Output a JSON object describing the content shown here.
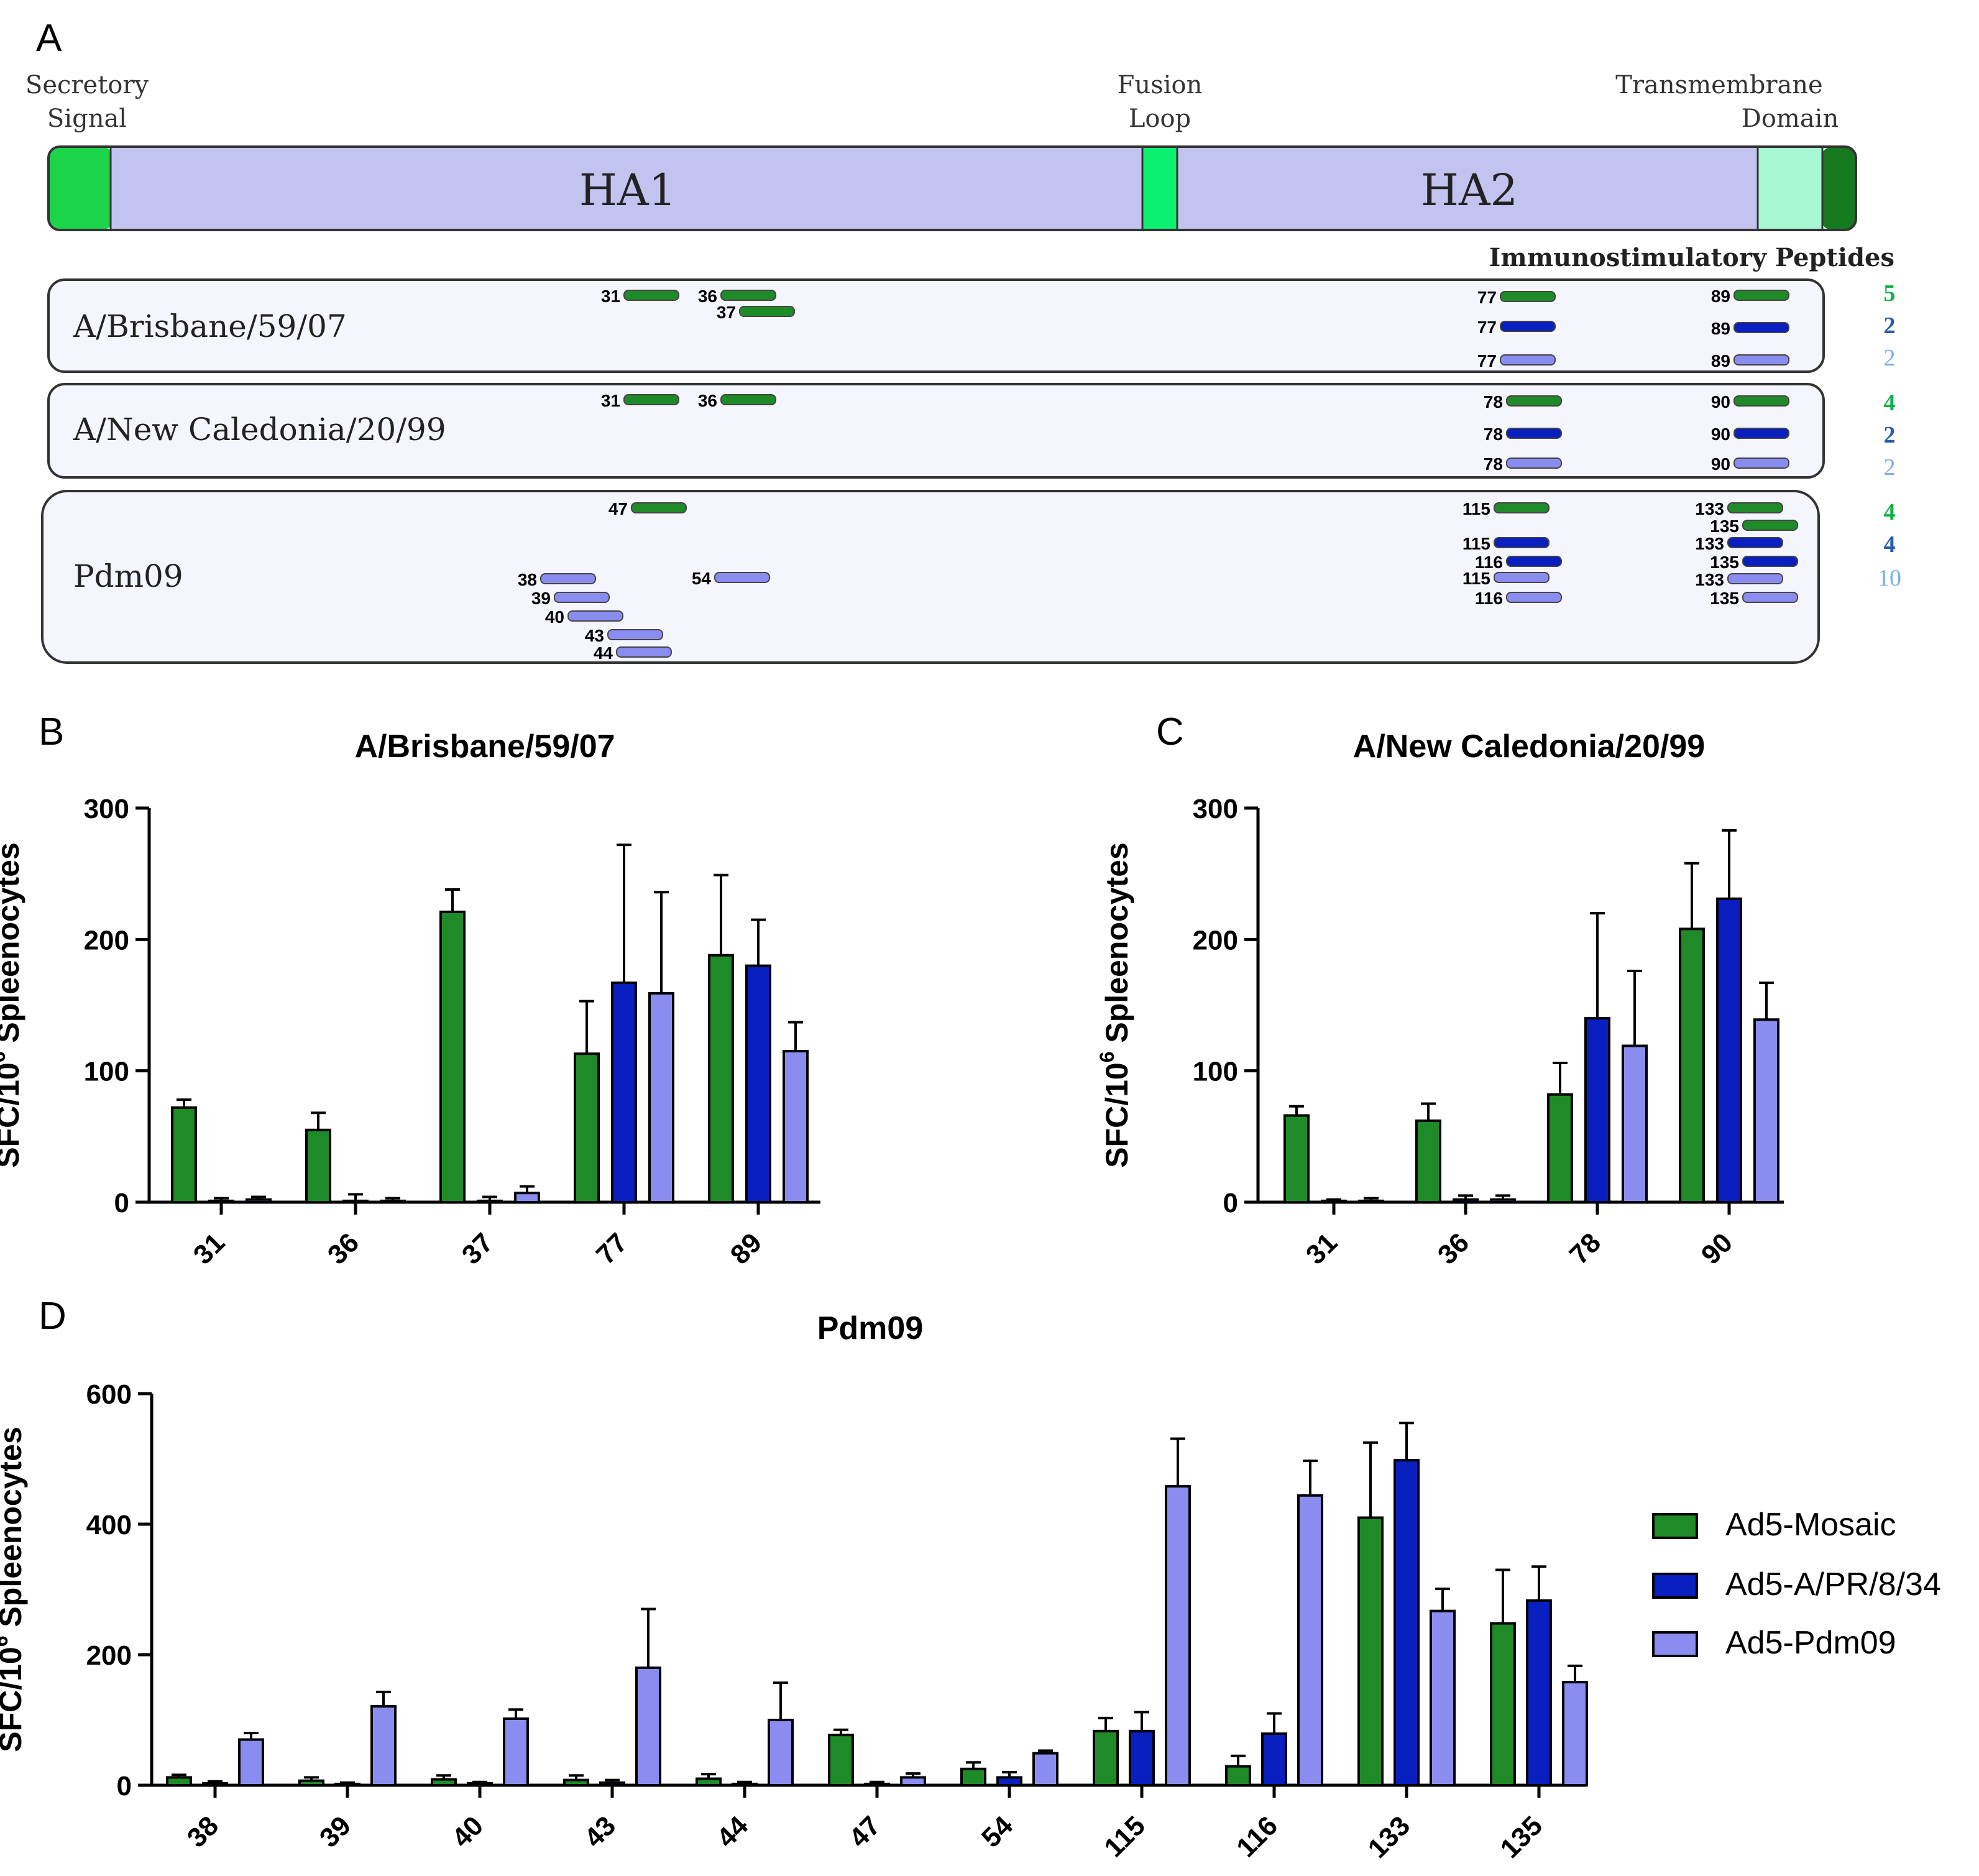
{
  "colors": {
    "mosaic": "#1e8a28",
    "pr8": "#0a1fbf",
    "pdm09": "#8b8cf0",
    "ha_body": "#c3c3f0",
    "secretory": "#1bd44a",
    "fusion": "#0bf070",
    "tm": "#a6f7d2",
    "cyto": "#157a1e",
    "strain_box": "#f5f5fe",
    "count_mosaic": "#13b04b",
    "count_pr8": "#2a5bb0",
    "count_pdm09": "#7aaee8"
  },
  "panel_a": {
    "label": "A",
    "secretory_label": [
      "Secretory",
      "Signal"
    ],
    "fusion_label": [
      "Fusion",
      "Loop"
    ],
    "tm_label": [
      "Transmembrane",
      "Domain"
    ],
    "ha1": "HA1",
    "ha2": "HA2",
    "peptides_title": "Immunostimulatory Peptides",
    "strains": [
      {
        "name": "A/Brisbane/59/07",
        "counts": [
          "5",
          "2",
          "2"
        ],
        "peptides": [
          {
            "id": "31",
            "group": "mosaic"
          },
          {
            "id": "36",
            "group": "mosaic"
          },
          {
            "id": "37",
            "group": "mosaic"
          },
          {
            "id": "77",
            "group": "mosaic"
          },
          {
            "id": "89",
            "group": "mosaic"
          },
          {
            "id": "77",
            "group": "pr8"
          },
          {
            "id": "89",
            "group": "pr8"
          },
          {
            "id": "77",
            "group": "pdm09"
          },
          {
            "id": "89",
            "group": "pdm09"
          }
        ]
      },
      {
        "name": "A/New Caledonia/20/99",
        "counts": [
          "4",
          "2",
          "2"
        ],
        "peptides": [
          {
            "id": "31",
            "group": "mosaic"
          },
          {
            "id": "36",
            "group": "mosaic"
          },
          {
            "id": "78",
            "group": "mosaic"
          },
          {
            "id": "90",
            "group": "mosaic"
          },
          {
            "id": "78",
            "group": "pr8"
          },
          {
            "id": "90",
            "group": "pr8"
          },
          {
            "id": "78",
            "group": "pdm09"
          },
          {
            "id": "90",
            "group": "pdm09"
          }
        ]
      },
      {
        "name": "Pdm09",
        "counts": [
          "4",
          "4",
          "10"
        ],
        "peptides": [
          {
            "id": "47",
            "group": "mosaic"
          },
          {
            "id": "115",
            "group": "mosaic"
          },
          {
            "id": "133",
            "group": "mosaic"
          },
          {
            "id": "135",
            "group": "mosaic"
          },
          {
            "id": "115",
            "group": "pr8"
          },
          {
            "id": "116",
            "group": "pr8"
          },
          {
            "id": "133",
            "group": "pr8"
          },
          {
            "id": "135",
            "group": "pr8"
          },
          {
            "id": "38",
            "group": "pdm09"
          },
          {
            "id": "39",
            "group": "pdm09"
          },
          {
            "id": "40",
            "group": "pdm09"
          },
          {
            "id": "43",
            "group": "pdm09"
          },
          {
            "id": "44",
            "group": "pdm09"
          },
          {
            "id": "54",
            "group": "pdm09"
          },
          {
            "id": "115",
            "group": "pdm09"
          },
          {
            "id": "116",
            "group": "pdm09"
          },
          {
            "id": "133",
            "group": "pdm09"
          },
          {
            "id": "135",
            "group": "pdm09"
          }
        ]
      }
    ]
  },
  "chart_data": [
    {
      "panel": "B",
      "type": "bar",
      "title": "A/Brisbane/59/07",
      "ylabel": "SFC/10^6 Spleenocytes",
      "ylim": [
        0,
        300
      ],
      "yticks": [
        "0",
        "100",
        "200",
        "300"
      ],
      "categories": [
        "31",
        "36",
        "37",
        "77",
        "89"
      ],
      "series": [
        {
          "name": "Ad5-Mosaic",
          "values": [
            72,
            55,
            221,
            113,
            188
          ],
          "errors": [
            6,
            13,
            17,
            40,
            61
          ]
        },
        {
          "name": "Ad5-A/PR/8/34",
          "values": [
            1,
            1,
            1,
            167,
            180
          ],
          "errors": [
            2,
            5,
            3,
            105,
            35
          ]
        },
        {
          "name": "Ad5-Pdm09",
          "values": [
            2,
            1,
            7,
            159,
            115
          ],
          "errors": [
            2,
            2,
            5,
            77,
            22
          ]
        }
      ]
    },
    {
      "panel": "C",
      "type": "bar",
      "title": "A/New Caledonia/20/99",
      "ylabel": "SFC/10^6 Spleenocytes",
      "ylim": [
        0,
        300
      ],
      "yticks": [
        "0",
        "100",
        "200",
        "300"
      ],
      "categories": [
        "31",
        "36",
        "78",
        "90"
      ],
      "series": [
        {
          "name": "Ad5-Mosaic",
          "values": [
            66,
            62,
            82,
            208
          ],
          "errors": [
            7,
            13,
            24,
            50
          ]
        },
        {
          "name": "Ad5-A/PR/8/34",
          "values": [
            1,
            2,
            140,
            231
          ],
          "errors": [
            1,
            3,
            80,
            52
          ]
        },
        {
          "name": "Ad5-Pdm09",
          "values": [
            1,
            2,
            119,
            139
          ],
          "errors": [
            2,
            3,
            57,
            28
          ]
        }
      ]
    },
    {
      "panel": "D",
      "type": "bar",
      "title": "Pdm09",
      "ylabel": "SFC/10^6 Spleenocytes",
      "ylim": [
        0,
        600
      ],
      "yticks": [
        "0",
        "200",
        "400",
        "600"
      ],
      "categories": [
        "38",
        "39",
        "40",
        "43",
        "44",
        "47",
        "54",
        "115",
        "116",
        "133",
        "135"
      ],
      "series": [
        {
          "name": "Ad5-Mosaic",
          "values": [
            12,
            7,
            9,
            8,
            10,
            77,
            25,
            83,
            29,
            410,
            248
          ],
          "errors": [
            4,
            5,
            6,
            7,
            7,
            8,
            10,
            20,
            16,
            115,
            82
          ]
        },
        {
          "name": "Ad5-A/PR/8/34",
          "values": [
            3,
            2,
            3,
            4,
            2,
            2,
            12,
            83,
            79,
            498,
            283
          ],
          "errors": [
            3,
            2,
            2,
            4,
            3,
            3,
            8,
            29,
            31,
            57,
            52
          ]
        },
        {
          "name": "Ad5-Pdm09",
          "values": [
            70,
            121,
            102,
            180,
            100,
            12,
            49,
            458,
            444,
            267,
            158
          ],
          "errors": [
            10,
            22,
            14,
            90,
            57,
            6,
            4,
            73,
            53,
            34,
            25
          ]
        }
      ]
    }
  ],
  "legend": {
    "items": [
      {
        "label": "Ad5-Mosaic",
        "color_key": "mosaic"
      },
      {
        "label": "Ad5-A/PR/8/34",
        "color_key": "pr8"
      },
      {
        "label": "Ad5-Pdm09",
        "color_key": "pdm09"
      }
    ]
  }
}
